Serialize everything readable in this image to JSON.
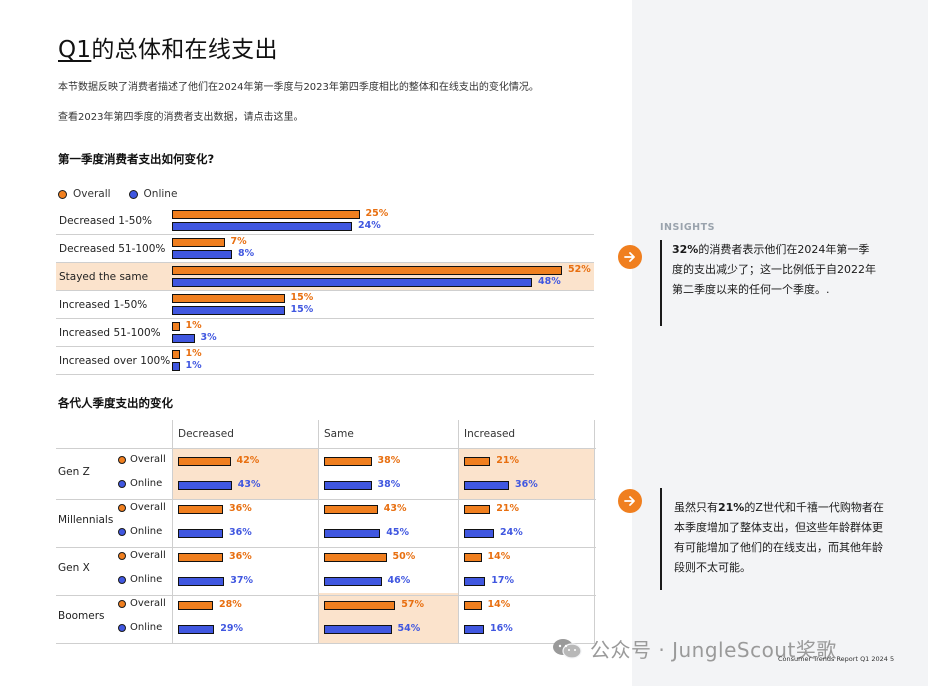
{
  "page": {
    "title_q": "Q1",
    "title_rest": "的总体和在线支出",
    "para1": "本节数据反映了消费者描述了他们在2024年第一季度与2023年第四季度相比的整体和在线支出的变化情况。",
    "para2": "查看2023年第四季度的消费者支出数据，请点击这里。",
    "section1_heading": "第一季度消费者支出如何变化?",
    "section2_heading": "各代人季度支出的变化",
    "footer": "Consumer Trends Report Q1 2024    5",
    "watermark": "公众号 · JungleScout奖歌"
  },
  "legend": {
    "overall": "Overall",
    "online": "Online"
  },
  "colors": {
    "overall": "#f07f1f",
    "online": "#4057e0",
    "highlight": "#fbe3cc",
    "sidebar_bg": "#f3f4f6"
  },
  "chart_data": [
    {
      "type": "bar",
      "orientation": "horizontal",
      "title": "第一季度消费者支出如何变化?",
      "categories": [
        "Decreased 1-50%",
        "Decreased 51-100%",
        "Stayed the same",
        "Increased 1-50%",
        "Increased 51-100%",
        "Increased over 100%"
      ],
      "series": [
        {
          "name": "Overall",
          "values": [
            25,
            7,
            52,
            15,
            1,
            1
          ]
        },
        {
          "name": "Online",
          "values": [
            24,
            8,
            48,
            15,
            3,
            1
          ]
        }
      ],
      "unit": "%",
      "highlight_category": "Stayed the same"
    },
    {
      "type": "table",
      "title": "各代人季度支出的变化",
      "columns": [
        "Decreased",
        "Same",
        "Increased"
      ],
      "rows": [
        {
          "generation": "Gen Z",
          "Overall": [
            42,
            38,
            21
          ],
          "Online": [
            43,
            38,
            36
          ]
        },
        {
          "generation": "Millennials",
          "Overall": [
            36,
            43,
            21
          ],
          "Online": [
            36,
            45,
            24
          ]
        },
        {
          "generation": "Gen X",
          "Overall": [
            36,
            50,
            14
          ],
          "Online": [
            37,
            46,
            17
          ]
        },
        {
          "generation": "Boomers",
          "Overall": [
            28,
            57,
            14
          ],
          "Online": [
            29,
            54,
            16
          ]
        }
      ],
      "unit": "%",
      "highlights": [
        {
          "generation": "Gen Z",
          "column": "Decreased"
        },
        {
          "generation": "Gen Z",
          "column": "Increased"
        },
        {
          "generation": "Boomers",
          "column": "Same"
        }
      ]
    }
  ],
  "insights": {
    "label": "INSIGHTS",
    "items": [
      {
        "lead": "32%",
        "text": "的消费者表示他们在2024年第一季度的支出减少了；这一比例低于自2022年第二季度以来的任何一个季度。."
      },
      {
        "text_before": "虽然只有",
        "lead": "21%",
        "text": "的Z世代和千禧一代购物者在本季度增加了整体支出，但这些年龄群体更有可能增加了他们的在线支出，而其他年龄段则不太可能。"
      }
    ]
  }
}
